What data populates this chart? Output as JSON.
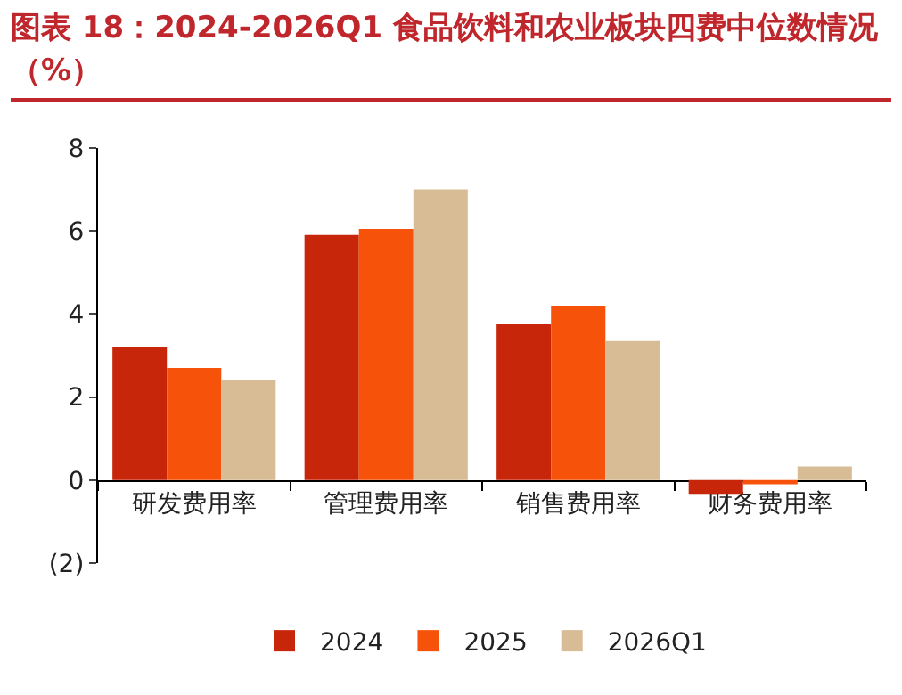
{
  "chart_data": {
    "type": "bar",
    "title": "图表 18：2024-2026Q1 食品饮料和农业板块四费中位数情况（%）",
    "categories": [
      "研发费用率",
      "管理费用率",
      "销售费用率",
      "财务费用率"
    ],
    "series": [
      {
        "name": "2024",
        "color": "#c8260a",
        "values": [
          3.2,
          5.9,
          3.75,
          -0.33
        ]
      },
      {
        "name": "2025",
        "color": "#f7520a",
        "values": [
          2.7,
          6.05,
          4.2,
          -0.1
        ]
      },
      {
        "name": "2026Q1",
        "color": "#d8bc96",
        "values": [
          2.4,
          7.0,
          3.35,
          0.33
        ]
      }
    ],
    "ylim": [
      -2,
      8
    ],
    "yticks": [
      {
        "value": -2,
        "label": "(2)"
      },
      0,
      2,
      4,
      6,
      8
    ],
    "grid": false,
    "legend": "bottom"
  }
}
